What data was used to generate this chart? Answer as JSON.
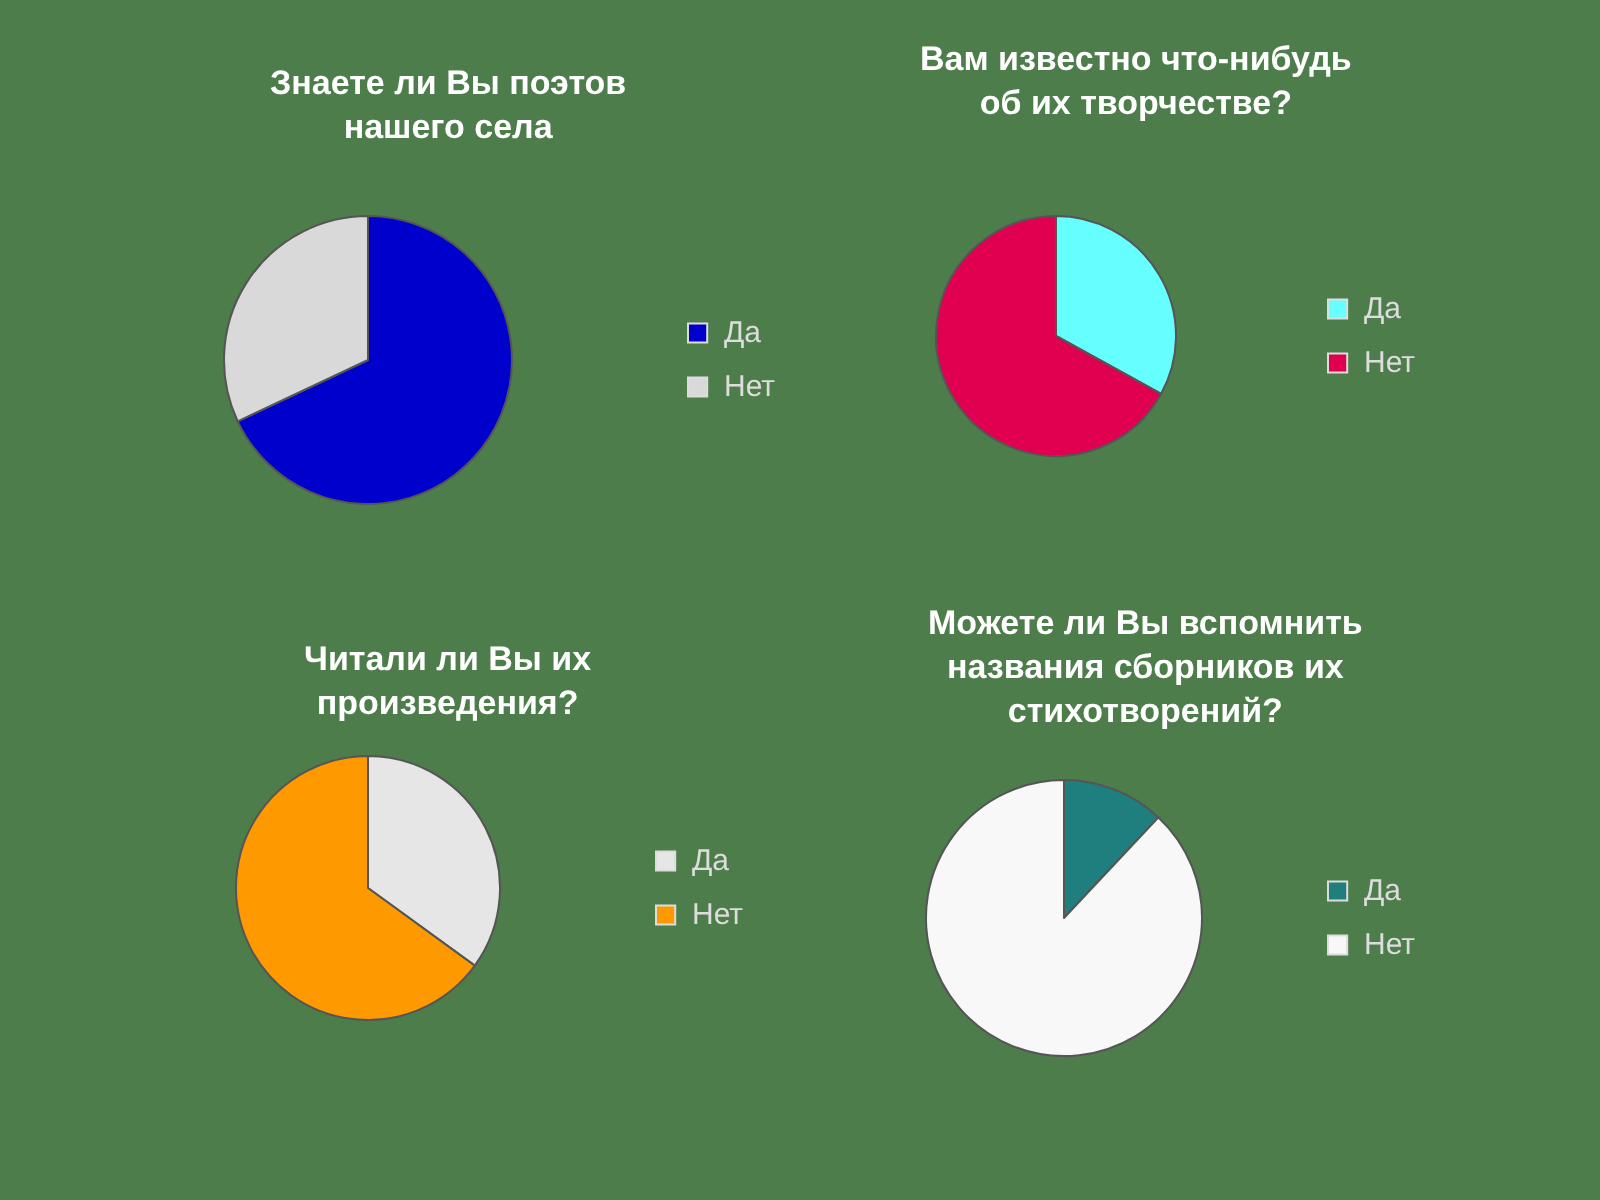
{
  "chart_data": [
    {
      "type": "pie",
      "title": "Знаете ли Вы поэтов нашего села",
      "categories": [
        "Да",
        "Нет"
      ],
      "values": [
        68,
        32
      ],
      "colors": [
        "#0000cc",
        "#d9d9d9"
      ],
      "legend": "right"
    },
    {
      "type": "pie",
      "title": "Вам известно что-нибудь об их творчестве?",
      "categories": [
        "Да",
        "Нет"
      ],
      "values": [
        33,
        67
      ],
      "colors": [
        "#66ffff",
        "#e0004f"
      ],
      "legend": "right"
    },
    {
      "type": "pie",
      "title": "Читали ли Вы их произведения?",
      "categories": [
        "Да",
        "Нет"
      ],
      "values": [
        35,
        65
      ],
      "colors": [
        "#e6e6e6",
        "#ff9900"
      ],
      "legend": "right"
    },
    {
      "type": "pie",
      "title": "Можете ли Вы вспомнить названия сборников их стихотворений?",
      "categories": [
        "Да",
        "Нет"
      ],
      "values": [
        12,
        88
      ],
      "colors": [
        "#1f7f7f",
        "#f8f8f8"
      ],
      "legend": "right"
    }
  ]
}
